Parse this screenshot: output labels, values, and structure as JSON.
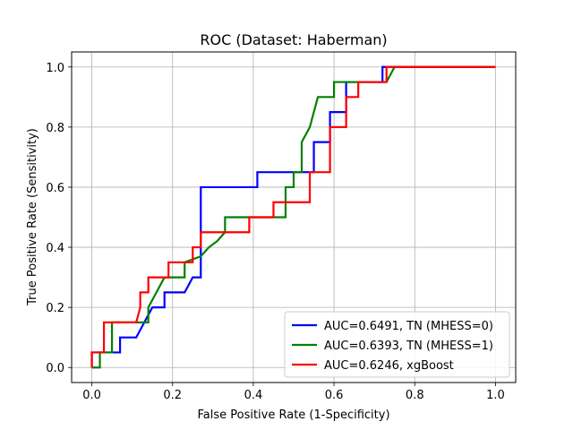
{
  "chart_data": {
    "type": "line",
    "title": "ROC (Dataset: Haberman)",
    "xlabel": "False Positive Rate (1-Specificity)",
    "ylabel": "True Positive Rate (Sensitivity)",
    "xlim": [
      -0.05,
      1.05
    ],
    "ylim": [
      -0.05,
      1.05
    ],
    "xticks": [
      "0.0",
      "0.2",
      "0.4",
      "0.6",
      "0.8",
      "1.0"
    ],
    "yticks": [
      "0.0",
      "0.2",
      "0.4",
      "0.6",
      "0.8",
      "1.0"
    ],
    "grid": true,
    "legend_position": "bottom-right",
    "series": [
      {
        "name": "AUC=0.6491, TN (MHESS=0)",
        "color": "#0000ff",
        "x": [
          0.0,
          0.0,
          0.07,
          0.07,
          0.11,
          0.13,
          0.15,
          0.18,
          0.18,
          0.23,
          0.25,
          0.25,
          0.27,
          0.27,
          0.41,
          0.41,
          0.55,
          0.55,
          0.59,
          0.59,
          0.63,
          0.63,
          0.72,
          0.72,
          1.0
        ],
        "y": [
          0.0,
          0.05,
          0.05,
          0.1,
          0.1,
          0.15,
          0.2,
          0.2,
          0.25,
          0.25,
          0.3,
          0.3,
          0.3,
          0.6,
          0.6,
          0.65,
          0.65,
          0.75,
          0.75,
          0.85,
          0.85,
          0.95,
          0.95,
          1.0,
          1.0
        ]
      },
      {
        "name": "AUC=0.6393, TN (MHESS=1)",
        "color": "#008000",
        "x": [
          0.0,
          0.02,
          0.02,
          0.05,
          0.05,
          0.14,
          0.14,
          0.16,
          0.18,
          0.23,
          0.23,
          0.27,
          0.29,
          0.31,
          0.33,
          0.33,
          0.48,
          0.48,
          0.5,
          0.5,
          0.52,
          0.52,
          0.54,
          0.56,
          0.6,
          0.6,
          0.65,
          0.65,
          0.73,
          0.75,
          1.0
        ],
        "y": [
          0.0,
          0.0,
          0.05,
          0.05,
          0.15,
          0.15,
          0.2,
          0.25,
          0.3,
          0.3,
          0.35,
          0.37,
          0.4,
          0.42,
          0.45,
          0.5,
          0.5,
          0.6,
          0.6,
          0.65,
          0.65,
          0.75,
          0.8,
          0.9,
          0.9,
          0.95,
          0.95,
          0.95,
          0.95,
          1.0,
          1.0
        ]
      },
      {
        "name": "AUC=0.6246, xgBoost",
        "color": "#ff0000",
        "x": [
          0.0,
          0.0,
          0.03,
          0.03,
          0.11,
          0.12,
          0.12,
          0.14,
          0.14,
          0.19,
          0.19,
          0.25,
          0.25,
          0.27,
          0.27,
          0.39,
          0.39,
          0.45,
          0.45,
          0.54,
          0.54,
          0.59,
          0.59,
          0.63,
          0.63,
          0.66,
          0.66,
          0.73,
          0.73,
          1.0
        ],
        "y": [
          0.0,
          0.05,
          0.05,
          0.15,
          0.15,
          0.2,
          0.25,
          0.25,
          0.3,
          0.3,
          0.35,
          0.35,
          0.4,
          0.4,
          0.45,
          0.45,
          0.5,
          0.5,
          0.55,
          0.55,
          0.65,
          0.65,
          0.8,
          0.8,
          0.9,
          0.9,
          0.95,
          0.95,
          1.0,
          1.0
        ]
      }
    ]
  }
}
